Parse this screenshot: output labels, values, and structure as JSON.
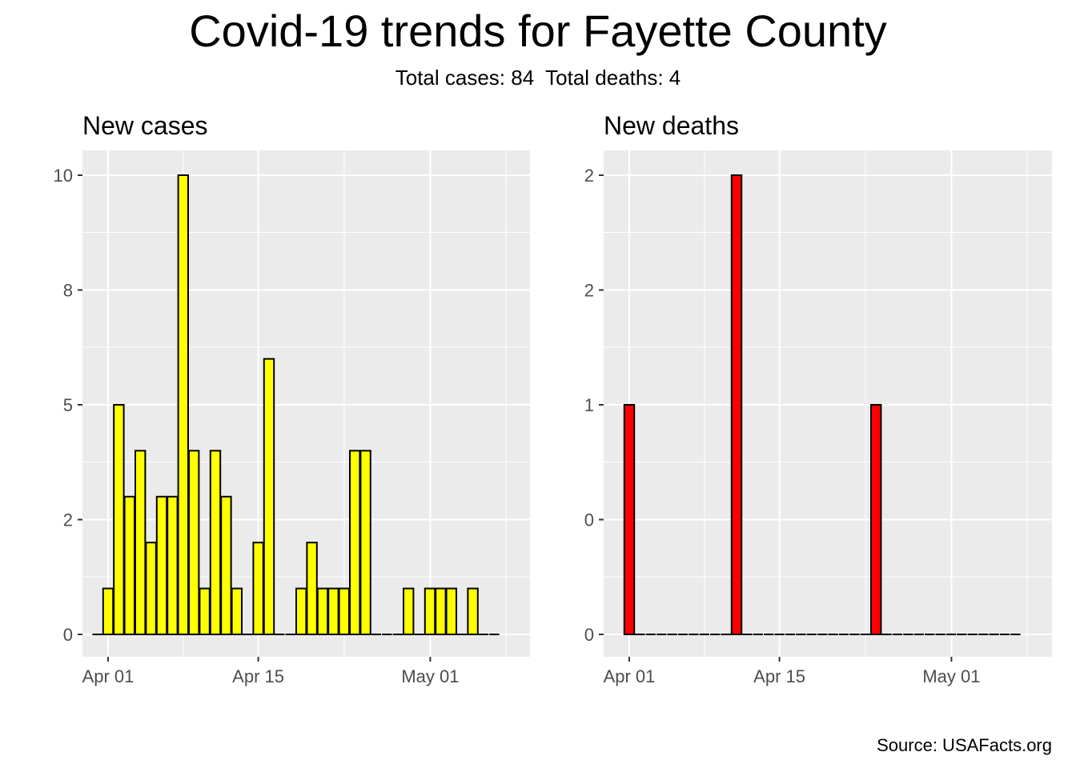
{
  "header": {
    "title": "Covid-19 trends for Fayette County",
    "subtitle": "Total cases: 84  Total deaths: 4"
  },
  "footer": {
    "source": "Source: USAFacts.org"
  },
  "colors": {
    "cases_fill": "#FFFF00",
    "deaths_fill": "#FF0000",
    "panel_bg": "#EBEBEB",
    "grid": "#FFFFFF",
    "bar_outline": "#000000"
  },
  "chart_data": [
    {
      "type": "bar",
      "title": "New cases",
      "xlabel": "",
      "ylabel": "",
      "x_start_date": "Mar 31",
      "x_end_date": "May 08",
      "x_ticks": [
        "Apr 01",
        "Apr 15",
        "May 01"
      ],
      "y_ticks": [
        "0",
        "2",
        "5",
        "8",
        "10"
      ],
      "ylim": [
        -0.5,
        10.5
      ],
      "grid": true,
      "x": [
        "Mar 31",
        "Apr 01",
        "Apr 02",
        "Apr 03",
        "Apr 04",
        "Apr 05",
        "Apr 06",
        "Apr 07",
        "Apr 08",
        "Apr 09",
        "Apr 10",
        "Apr 11",
        "Apr 12",
        "Apr 13",
        "Apr 14",
        "Apr 15",
        "Apr 16",
        "Apr 17",
        "Apr 18",
        "Apr 19",
        "Apr 20",
        "Apr 21",
        "Apr 22",
        "Apr 23",
        "Apr 24",
        "Apr 25",
        "Apr 26",
        "Apr 27",
        "Apr 28",
        "Apr 29",
        "Apr 30",
        "May 01",
        "May 02",
        "May 03",
        "May 04",
        "May 05",
        "May 06",
        "May 07"
      ],
      "values": [
        0,
        1,
        5,
        3,
        4,
        2,
        3,
        3,
        10,
        4,
        1,
        4,
        3,
        1,
        0,
        2,
        6,
        0,
        0,
        1,
        2,
        1,
        1,
        1,
        4,
        4,
        0,
        0,
        0,
        1,
        0,
        1,
        1,
        1,
        0,
        1,
        0,
        0
      ]
    },
    {
      "type": "bar",
      "title": "New deaths",
      "xlabel": "",
      "ylabel": "",
      "x_start_date": "Apr 01",
      "x_end_date": "May 08",
      "x_ticks": [
        "Apr 01",
        "Apr 15",
        "May 01"
      ],
      "y_ticks": [
        "0",
        "0",
        "1",
        "2",
        "2"
      ],
      "ylim": [
        -0.1,
        2.1
      ],
      "grid": true,
      "x": [
        "Apr 01",
        "Apr 02",
        "Apr 03",
        "Apr 04",
        "Apr 05",
        "Apr 06",
        "Apr 07",
        "Apr 08",
        "Apr 09",
        "Apr 10",
        "Apr 11",
        "Apr 12",
        "Apr 13",
        "Apr 14",
        "Apr 15",
        "Apr 16",
        "Apr 17",
        "Apr 18",
        "Apr 19",
        "Apr 20",
        "Apr 21",
        "Apr 22",
        "Apr 23",
        "Apr 24",
        "Apr 25",
        "Apr 26",
        "Apr 27",
        "Apr 28",
        "Apr 29",
        "Apr 30",
        "May 01",
        "May 02",
        "May 03",
        "May 04",
        "May 05",
        "May 06",
        "May 07"
      ],
      "values": [
        1,
        0,
        0,
        0,
        0,
        0,
        0,
        0,
        0,
        0,
        2,
        0,
        0,
        0,
        0,
        0,
        0,
        0,
        0,
        0,
        0,
        0,
        0,
        1,
        0,
        0,
        0,
        0,
        0,
        0,
        0,
        0,
        0,
        0,
        0,
        0,
        0
      ]
    }
  ]
}
